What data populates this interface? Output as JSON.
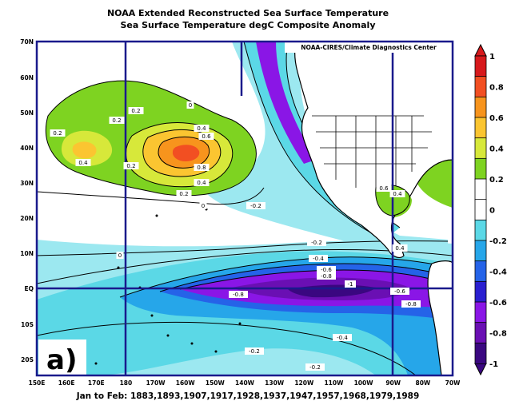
{
  "map": {
    "title": "NOAA Extended Reconstructed Sea Surface Temperature",
    "subtitle": "Sea Surface Temperature degC Composite Anomaly",
    "credit": "NOAA-CIRES/Climate Diagnostics Center",
    "panel_label": "a)",
    "period": "Jan to Feb: 1883,1893,1907,1917,1928,1937,1947,1957,1968,1979,1989",
    "lat_labels": [
      "70N",
      "60N",
      "50N",
      "40N",
      "30N",
      "20N",
      "10N",
      "EQ",
      "10S",
      "20S"
    ],
    "lon_labels": [
      "150E",
      "160E",
      "170E",
      "180",
      "170W",
      "160W",
      "150W",
      "140W",
      "130W",
      "120W",
      "110W",
      "100W",
      "90W",
      "80W",
      "70W"
    ],
    "colorbar": {
      "tick_labels": [
        "1",
        "0.8",
        "0.6",
        "0.4",
        "0.2",
        "0",
        "-0.2",
        "-0.4",
        "-0.6",
        "-0.8",
        "-1"
      ],
      "colors": [
        "#d7191c",
        "#f24f22",
        "#f7941d",
        "#fbc531",
        "#d7e83a",
        "#7ed321",
        "#ffffff",
        "#ffffff",
        "#5bd8e6",
        "#26a6e9",
        "#2563e8",
        "#2a1fd0",
        "#8a16e6",
        "#6a0fb3",
        "#3a0780"
      ]
    },
    "contour_labels": [
      {
        "text": "0.2"
      },
      {
        "text": "0.2"
      },
      {
        "text": "0.2"
      },
      {
        "text": "0.4"
      },
      {
        "text": "0"
      },
      {
        "text": "0.4"
      },
      {
        "text": "0.6"
      },
      {
        "text": "0.8"
      },
      {
        "text": "0.4"
      },
      {
        "text": "0.2"
      },
      {
        "text": "0.2"
      },
      {
        "text": "0"
      },
      {
        "text": "-0.2"
      },
      {
        "text": "0"
      },
      {
        "text": "-0.2"
      },
      {
        "text": "-0.4"
      },
      {
        "text": "-0.6"
      },
      {
        "text": "-0.8"
      },
      {
        "text": "-0.8"
      },
      {
        "text": "-1"
      },
      {
        "text": "-0.6"
      },
      {
        "text": "-0.8"
      },
      {
        "text": "-0.4"
      },
      {
        "text": "-0.2"
      },
      {
        "text": "-0.2"
      },
      {
        "text": "0.6"
      },
      {
        "text": "0.4"
      },
      {
        "text": "0.4"
      }
    ]
  }
}
